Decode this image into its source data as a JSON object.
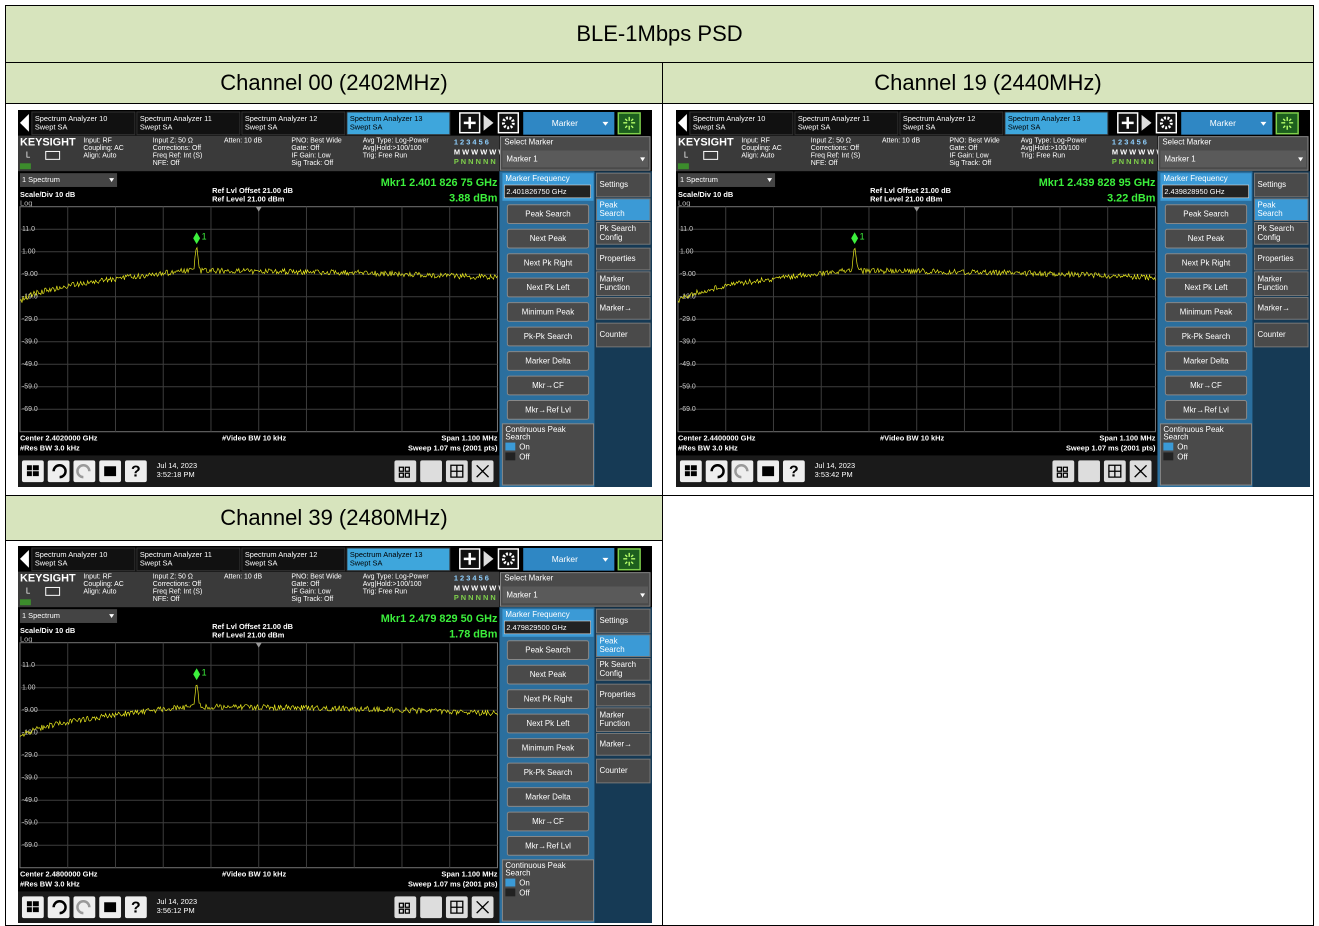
{
  "title": "BLE-1Mbps PSD",
  "analyzer": {
    "tabs": [
      {
        "name": "Spectrum Analyzer 10",
        "mode": "Swept SA"
      },
      {
        "name": "Spectrum Analyzer 11",
        "mode": "Swept SA"
      },
      {
        "name": "Spectrum Analyzer 12",
        "mode": "Swept SA"
      },
      {
        "name": "Spectrum Analyzer 13",
        "mode": "Swept SA"
      }
    ],
    "menu_title": "Marker",
    "brand": "KEYSIGHT",
    "local": "L",
    "info_columns": [
      [
        "Input: RF",
        "Coupling: AC",
        "Align: Auto"
      ],
      [
        "Input Z: 50 Ω",
        "Corrections: Off",
        "Freq Ref: Int (S)",
        "NFE: Off"
      ],
      [
        "Atten: 10 dB"
      ],
      [
        "PNO: Best Wide",
        "Gate: Off",
        "IF Gain: Low",
        "Sig Track: Off"
      ],
      [
        "Avg Type: Log-Power",
        "Avg|Hold:>100/100",
        "Trig: Free Run"
      ]
    ],
    "trace_rows": [
      "1 2 3 4 5 6",
      "M W W W W W",
      "P N N N N N"
    ],
    "select_marker": "Select Marker",
    "marker_choice": "Marker 1",
    "view": "1 Spectrum",
    "scale": "Scale/Div 10 dB",
    "log": "Log",
    "ref_offset": "Ref Lvl Offset 21.00 dB",
    "ref_level": "Ref Level 21.00 dBm",
    "y_labels": [
      "11.0",
      "1.00",
      "-9.00",
      "-19.0",
      "-29.0",
      "-39.0",
      "-49.0",
      "-59.0",
      "-69.0"
    ],
    "res_bw": "#Res BW 3.0 kHz",
    "video_bw": "#Video BW 10 kHz",
    "span": "Span 1.100 MHz",
    "sweep": "Sweep 1.07 ms (2001 pts)",
    "help": "?",
    "marker_frequency_label": "Marker Frequency",
    "buttons": [
      "Peak Search",
      "Next Peak",
      "Next Pk Right",
      "Next Pk Left",
      "Minimum Peak",
      "Pk-Pk Search",
      "Marker Delta",
      "Mkr→CF",
      "Mkr→Ref Lvl"
    ],
    "continuous": [
      "Continuous Peak",
      "Search"
    ],
    "on": "On",
    "off": "Off",
    "side_tabs": [
      [
        "Settings"
      ],
      [
        "Peak",
        "Search"
      ],
      [
        "Pk Search",
        "Config"
      ],
      [
        "Properties"
      ],
      [
        "Marker",
        "Function"
      ],
      [
        "Marker→"
      ],
      [
        "Counter"
      ]
    ],
    "marker_number": "1"
  },
  "panels": [
    {
      "heading": "Channel 00 (2402MHz)",
      "marker_readout": "Mkr1  2.401 826 75 GHz",
      "marker_level": "3.88 dBm",
      "marker_frequency": "2.401826750 GHz",
      "center": "Center 2.4020000 GHz",
      "date": "Jul 14, 2023",
      "time": "3:52:18 PM"
    },
    {
      "heading": "Channel 19 (2440MHz)",
      "marker_readout": "Mkr1  2.439 828 95 GHz",
      "marker_level": "3.22 dBm",
      "marker_frequency": "2.439828950 GHz",
      "center": "Center 2.4400000 GHz",
      "date": "Jul 14, 2023",
      "time": "3:53:42 PM"
    },
    {
      "heading": "Channel 39 (2480MHz)",
      "marker_readout": "Mkr1  2.479 829 50 GHz",
      "marker_level": "1.78 dBm",
      "marker_frequency": "2.479829500 GHz",
      "center": "Center 2.4800000 GHz",
      "date": "Jul 14, 2023",
      "time": "3:56:12 PM"
    }
  ]
}
